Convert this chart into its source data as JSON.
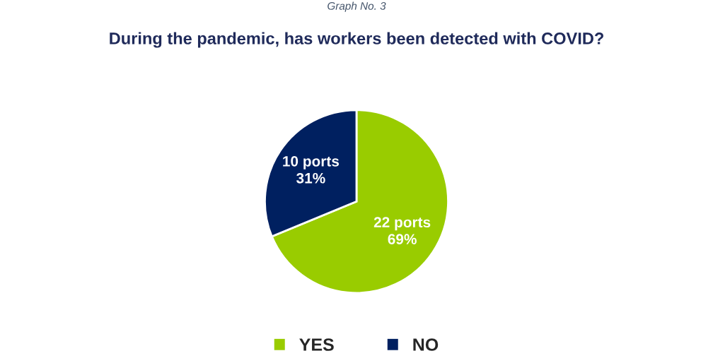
{
  "chart_data": {
    "type": "pie",
    "title": "During the pandemic, has workers been detected with COVID?",
    "annotations": [
      "Graph No. 3"
    ],
    "categories": [
      "YES",
      "NO"
    ],
    "values": [
      22,
      10
    ],
    "colors": [
      "#99cc00",
      "#002060"
    ],
    "value_labels": [
      "22 ports\n69%",
      "10 ports\n31%"
    ],
    "legend": "bottom"
  }
}
